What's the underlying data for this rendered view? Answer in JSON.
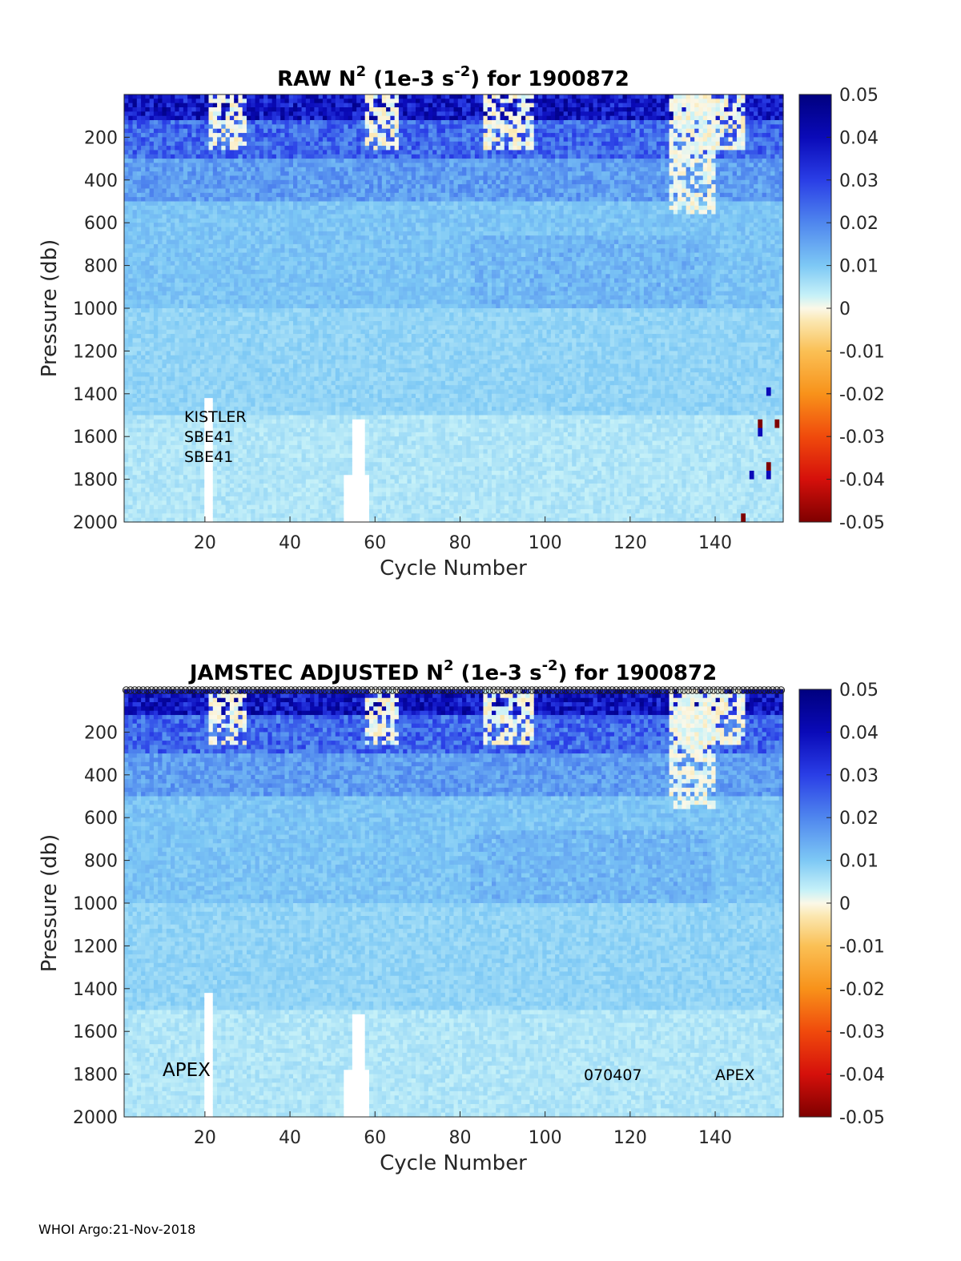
{
  "footer": "WHOI Argo:21-Nov-2018",
  "chart_data": [
    {
      "type": "heatmap",
      "title_main": "RAW N",
      "title_sup": "2",
      "title_mid": " (1e-3 s",
      "title_sup2": "-2",
      "title_end": ") for 1900872",
      "xlabel": "Cycle Number",
      "ylabel": "Pressure (db)",
      "xlim": [
        1,
        156
      ],
      "ylim": [
        2000,
        0
      ],
      "xticks": [
        "20",
        "40",
        "60",
        "80",
        "100",
        "120",
        "140"
      ],
      "yticks": [
        "200",
        "400",
        "600",
        "800",
        "1000",
        "1200",
        "1400",
        "1600",
        "1800",
        "2000"
      ],
      "colorbar_ticks": [
        "0.05",
        "0.04",
        "0.03",
        "0.02",
        "0.01",
        "0",
        "-0.01",
        "-0.02",
        "-0.03",
        "-0.04",
        "-0.05"
      ],
      "clim": [
        -0.05,
        0.05
      ],
      "annotations": [
        "KISTLER",
        "SBE41",
        "SBE41"
      ]
    },
    {
      "type": "heatmap",
      "title_main": "JAMSTEC  ADJUSTED N",
      "title_sup": "2",
      "title_mid": " (1e-3 s",
      "title_sup2": "-2",
      "title_end": ") for 1900872",
      "xlabel": "Cycle Number",
      "ylabel": "Pressure (db)",
      "xlim": [
        1,
        156
      ],
      "ylim": [
        2000,
        0
      ],
      "xticks": [
        "20",
        "40",
        "60",
        "80",
        "100",
        "120",
        "140"
      ],
      "yticks": [
        "200",
        "400",
        "600",
        "800",
        "1000",
        "1200",
        "1400",
        "1600",
        "1800",
        "2000"
      ],
      "colorbar_ticks": [
        "0.05",
        "0.04",
        "0.03",
        "0.02",
        "0.01",
        "0",
        "-0.01",
        "-0.02",
        "-0.03",
        "-0.04",
        "-0.05"
      ],
      "clim": [
        -0.05,
        0.05
      ],
      "annotations_left": "APEX",
      "annotations_mid": "070407",
      "annotations_right": "APEX"
    }
  ]
}
